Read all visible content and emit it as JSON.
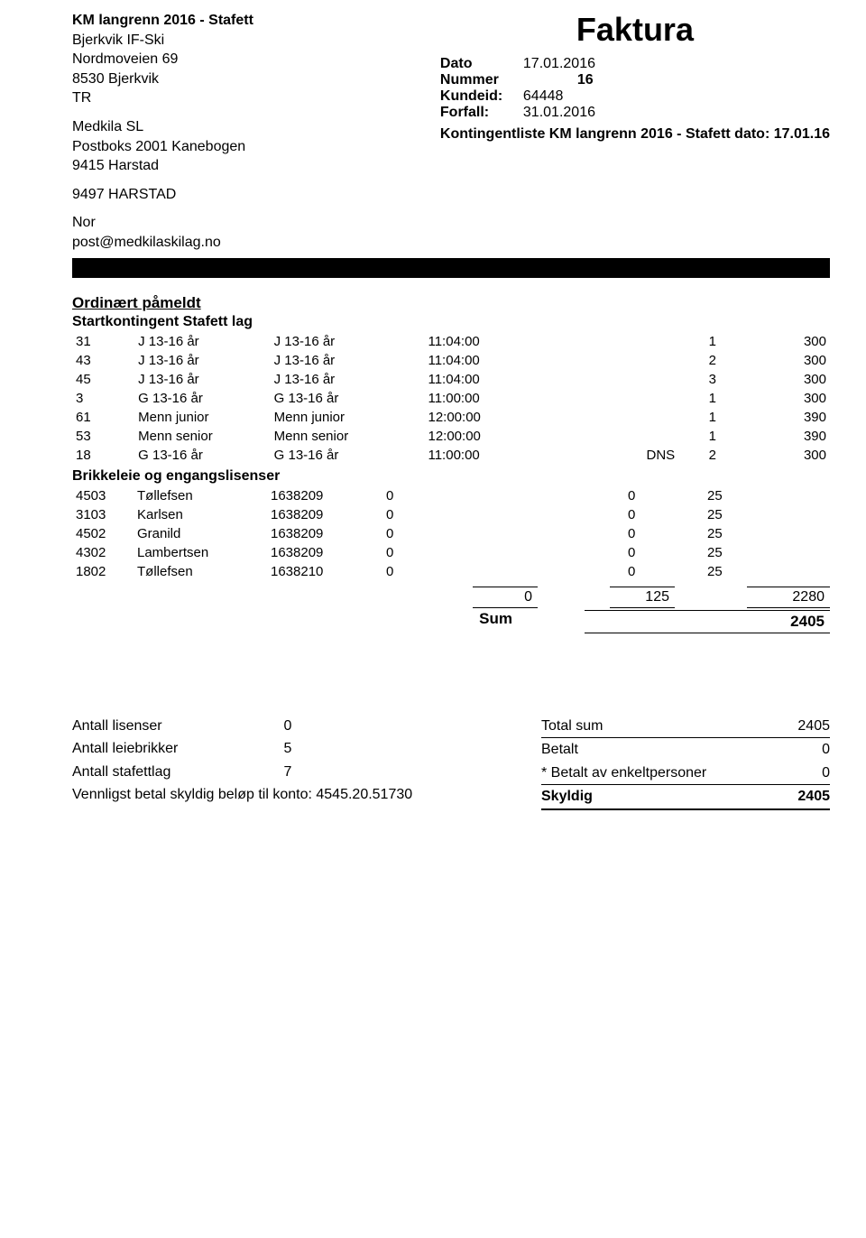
{
  "header": {
    "event_title": "KM langrenn 2016 - Stafett",
    "sender_name": "Bjerkvik IF-Ski",
    "sender_addr1": "Nordmoveien 69",
    "sender_postcode": "8530",
    "sender_city": "Bjerkvik",
    "sender_code": "TR",
    "recipient_name": "Medkila SL",
    "recipient_addr1": "Postboks 2001 Kanebogen",
    "recipient_addr2": "9415 Harstad",
    "recipient_extra": "9497  HARSTAD",
    "country": "Nor",
    "email": "post@medkilaskilag.no",
    "faktura": "Faktura",
    "dato_label": "Dato",
    "dato": "17.01.2016",
    "nummer_label": "Nummer",
    "nummer": "16",
    "kundeid_label": "Kundeid:",
    "kundeid": "64448",
    "forfall_label": "Forfall:",
    "forfall": "31.01.2016",
    "kontingent": "Kontingentliste  KM langrenn 2016 - Stafett dato: 17.01.16"
  },
  "section1": {
    "title": "Ordinært påmeldt",
    "subtitle": "Startkontingent Stafett lag",
    "rows": [
      {
        "n": "31",
        "c1": "J 13-16 år",
        "c2": "J 13-16 år",
        "t": "11:04:00",
        "dns": "",
        "q": "1",
        "a": "300"
      },
      {
        "n": "43",
        "c1": "J 13-16 år",
        "c2": "J 13-16 år",
        "t": "11:04:00",
        "dns": "",
        "q": "2",
        "a": "300"
      },
      {
        "n": "45",
        "c1": "J 13-16 år",
        "c2": "J 13-16 år",
        "t": "11:04:00",
        "dns": "",
        "q": "3",
        "a": "300"
      },
      {
        "n": "3",
        "c1": "G 13-16 år",
        "c2": "G 13-16 år",
        "t": "11:00:00",
        "dns": "",
        "q": "1",
        "a": "300"
      },
      {
        "n": "61",
        "c1": "Menn junior",
        "c2": "Menn junior",
        "t": "12:00:00",
        "dns": "",
        "q": "1",
        "a": "390"
      },
      {
        "n": "53",
        "c1": "Menn senior",
        "c2": "Menn senior",
        "t": "12:00:00",
        "dns": "",
        "q": "1",
        "a": "390"
      },
      {
        "n": "18",
        "c1": "G 13-16 år",
        "c2": "G 13-16 år",
        "t": "11:00:00",
        "dns": "DNS",
        "q": "2",
        "a": "300"
      }
    ]
  },
  "section2": {
    "title": "Brikkeleie og engangslisenser",
    "rows": [
      {
        "n": "4503",
        "name": "Tøllefsen",
        "id": "1638209",
        "z": "0",
        "z2": "0",
        "a": "25"
      },
      {
        "n": "3103",
        "name": "Karlsen",
        "id": "1638209",
        "z": "0",
        "z2": "0",
        "a": "25"
      },
      {
        "n": "4502",
        "name": "Granild",
        "id": "1638209",
        "z": "0",
        "z2": "0",
        "a": "25"
      },
      {
        "n": "4302",
        "name": "Lambertsen",
        "id": "1638209",
        "z": "0",
        "z2": "0",
        "a": "25"
      },
      {
        "n": "1802",
        "name": "Tøllefsen",
        "id": "1638210",
        "z": "0",
        "z2": "0",
        "a": "25"
      }
    ]
  },
  "totals": {
    "c1": "0",
    "c2": "125",
    "c3": "2280",
    "sum_label": "Sum",
    "sum": "2405"
  },
  "footer": {
    "lisenser_label": "Antall lisenser",
    "lisenser": "0",
    "leiebrikker_label": "Antall leiebrikker",
    "leiebrikker": "5",
    "stafettlag_label": "Antall stafettlag",
    "stafettlag": "7",
    "pay_text": "Vennligst betal skyldig beløp til konto: 4545.20.51730",
    "total_sum_label": "Total sum",
    "total_sum": "2405",
    "betalt_label": "Betalt",
    "betalt": "0",
    "enkelt_label": "* Betalt av enkeltpersoner",
    "enkelt": "0",
    "skyldig_label": "Skyldig",
    "skyldig": "2405"
  }
}
